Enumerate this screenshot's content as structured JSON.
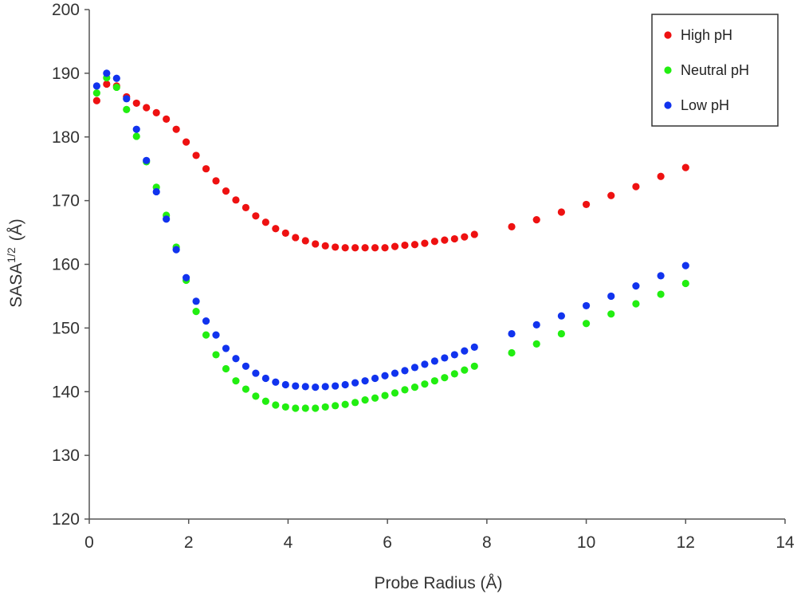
{
  "chart_data": {
    "type": "scatter",
    "xlabel": "Probe Radius (Å)",
    "ylabel": "SASA",
    "ylabel_superscript": "1/2",
    "ylabel_unit": "(Å)",
    "xlim": [
      0,
      14
    ],
    "ylim": [
      120,
      200
    ],
    "x_ticks": [
      0,
      2,
      4,
      6,
      8,
      10,
      12,
      14
    ],
    "y_ticks": [
      120,
      130,
      140,
      150,
      160,
      170,
      180,
      190,
      200
    ],
    "grid": false,
    "legend_position": "top-right",
    "series": [
      {
        "name": "High pH",
        "color": "#ee1111",
        "points": [
          [
            0.15,
            185.7
          ],
          [
            0.35,
            188.3
          ],
          [
            0.55,
            188.0
          ],
          [
            0.75,
            186.3
          ],
          [
            0.95,
            185.3
          ],
          [
            1.15,
            184.6
          ],
          [
            1.35,
            183.8
          ],
          [
            1.55,
            182.8
          ],
          [
            1.75,
            181.2
          ],
          [
            1.95,
            179.2
          ],
          [
            2.15,
            177.1
          ],
          [
            2.35,
            175.0
          ],
          [
            2.55,
            173.1
          ],
          [
            2.75,
            171.5
          ],
          [
            2.95,
            170.1
          ],
          [
            3.15,
            168.9
          ],
          [
            3.35,
            167.6
          ],
          [
            3.55,
            166.6
          ],
          [
            3.75,
            165.6
          ],
          [
            3.95,
            164.9
          ],
          [
            4.15,
            164.2
          ],
          [
            4.35,
            163.7
          ],
          [
            4.55,
            163.2
          ],
          [
            4.75,
            162.9
          ],
          [
            4.95,
            162.7
          ],
          [
            5.15,
            162.6
          ],
          [
            5.35,
            162.6
          ],
          [
            5.55,
            162.6
          ],
          [
            5.75,
            162.6
          ],
          [
            5.95,
            162.6
          ],
          [
            6.15,
            162.8
          ],
          [
            6.35,
            163.0
          ],
          [
            6.55,
            163.1
          ],
          [
            6.75,
            163.3
          ],
          [
            6.95,
            163.6
          ],
          [
            7.15,
            163.8
          ],
          [
            7.35,
            164.0
          ],
          [
            7.55,
            164.3
          ],
          [
            7.75,
            164.7
          ],
          [
            8.5,
            165.9
          ],
          [
            9.0,
            167.0
          ],
          [
            9.5,
            168.2
          ],
          [
            10.0,
            169.4
          ],
          [
            10.5,
            170.8
          ],
          [
            11.0,
            172.2
          ],
          [
            11.5,
            173.8
          ],
          [
            12.0,
            175.2
          ]
        ]
      },
      {
        "name": "Neutral pH",
        "color": "#22ee11",
        "points": [
          [
            0.15,
            186.9
          ],
          [
            0.35,
            189.3
          ],
          [
            0.55,
            187.8
          ],
          [
            0.75,
            184.3
          ],
          [
            0.95,
            180.1
          ],
          [
            1.15,
            176.1
          ],
          [
            1.35,
            172.1
          ],
          [
            1.55,
            167.7
          ],
          [
            1.75,
            162.7
          ],
          [
            1.95,
            157.5
          ],
          [
            2.15,
            152.6
          ],
          [
            2.35,
            148.9
          ],
          [
            2.55,
            145.8
          ],
          [
            2.75,
            143.6
          ],
          [
            2.95,
            141.7
          ],
          [
            3.15,
            140.4
          ],
          [
            3.35,
            139.3
          ],
          [
            3.55,
            138.5
          ],
          [
            3.75,
            137.9
          ],
          [
            3.95,
            137.6
          ],
          [
            4.15,
            137.4
          ],
          [
            4.35,
            137.4
          ],
          [
            4.55,
            137.4
          ],
          [
            4.75,
            137.6
          ],
          [
            4.95,
            137.8
          ],
          [
            5.15,
            138.0
          ],
          [
            5.35,
            138.3
          ],
          [
            5.55,
            138.7
          ],
          [
            5.75,
            139.0
          ],
          [
            5.95,
            139.4
          ],
          [
            6.15,
            139.8
          ],
          [
            6.35,
            140.3
          ],
          [
            6.55,
            140.7
          ],
          [
            6.75,
            141.2
          ],
          [
            6.95,
            141.7
          ],
          [
            7.15,
            142.2
          ],
          [
            7.35,
            142.8
          ],
          [
            7.55,
            143.4
          ],
          [
            7.75,
            144.0
          ],
          [
            8.5,
            146.1
          ],
          [
            9.0,
            147.5
          ],
          [
            9.5,
            149.1
          ],
          [
            10.0,
            150.7
          ],
          [
            10.5,
            152.2
          ],
          [
            11.0,
            153.8
          ],
          [
            11.5,
            155.3
          ],
          [
            12.0,
            157.0
          ]
        ]
      },
      {
        "name": "Low pH",
        "color": "#1133ee",
        "points": [
          [
            0.15,
            188.0
          ],
          [
            0.35,
            190.0
          ],
          [
            0.55,
            189.2
          ],
          [
            0.75,
            186.0
          ],
          [
            0.95,
            181.2
          ],
          [
            1.15,
            176.3
          ],
          [
            1.35,
            171.4
          ],
          [
            1.55,
            167.1
          ],
          [
            1.75,
            162.3
          ],
          [
            1.95,
            157.9
          ],
          [
            2.15,
            154.2
          ],
          [
            2.35,
            151.1
          ],
          [
            2.55,
            148.9
          ],
          [
            2.75,
            146.8
          ],
          [
            2.95,
            145.2
          ],
          [
            3.15,
            144.0
          ],
          [
            3.35,
            142.9
          ],
          [
            3.55,
            142.1
          ],
          [
            3.75,
            141.5
          ],
          [
            3.95,
            141.1
          ],
          [
            4.15,
            140.9
          ],
          [
            4.35,
            140.8
          ],
          [
            4.55,
            140.7
          ],
          [
            4.75,
            140.8
          ],
          [
            4.95,
            140.9
          ],
          [
            5.15,
            141.1
          ],
          [
            5.35,
            141.4
          ],
          [
            5.55,
            141.7
          ],
          [
            5.75,
            142.1
          ],
          [
            5.95,
            142.5
          ],
          [
            6.15,
            142.9
          ],
          [
            6.35,
            143.3
          ],
          [
            6.55,
            143.8
          ],
          [
            6.75,
            144.3
          ],
          [
            6.95,
            144.8
          ],
          [
            7.15,
            145.3
          ],
          [
            7.35,
            145.8
          ],
          [
            7.55,
            146.4
          ],
          [
            7.75,
            147.0
          ],
          [
            8.5,
            149.1
          ],
          [
            9.0,
            150.5
          ],
          [
            9.5,
            151.9
          ],
          [
            10.0,
            153.5
          ],
          [
            10.5,
            155.0
          ],
          [
            11.0,
            156.6
          ],
          [
            11.5,
            158.2
          ],
          [
            12.0,
            159.8
          ]
        ]
      }
    ]
  }
}
